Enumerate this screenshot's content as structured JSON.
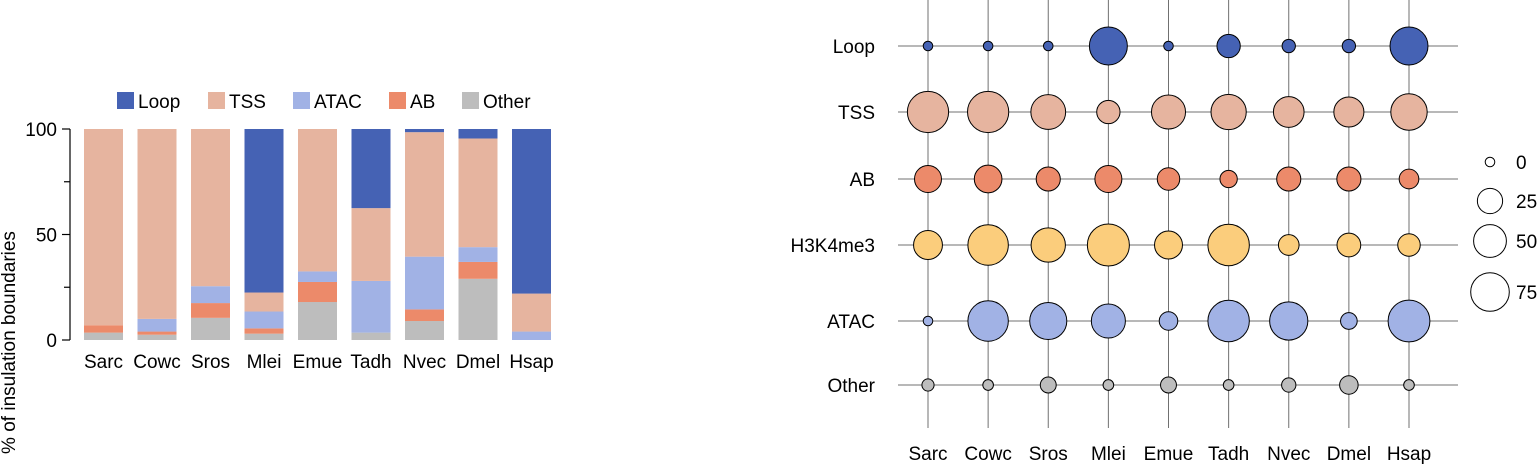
{
  "colors": {
    "Loop": "#4562b4",
    "TSS": "#e6b49f",
    "ATAC": "#a1b2e5",
    "AB": "#ec8a6a",
    "Other": "#bdbdbd",
    "H3K4me3": "#fbcd7c"
  },
  "chart_data": [
    {
      "type": "bar",
      "stacked": true,
      "categories": [
        "Sarc",
        "Cowc",
        "Sros",
        "Mlei",
        "Emue",
        "Tadh",
        "Nvec",
        "Dmel",
        "Hsap"
      ],
      "series": [
        {
          "name": "Other",
          "values": [
            3.5,
            2.5,
            10.5,
            3,
            18,
            3.5,
            9,
            29,
            0
          ]
        },
        {
          "name": "AB",
          "values": [
            3.5,
            1.5,
            7,
            2.5,
            9.5,
            0,
            5.5,
            8,
            0
          ]
        },
        {
          "name": "ATAC",
          "values": [
            0,
            6,
            8,
            8,
            5,
            24.5,
            25,
            7,
            4
          ]
        },
        {
          "name": "TSS",
          "values": [
            93,
            90,
            74.5,
            9,
            67.5,
            34.5,
            59,
            51.5,
            18
          ]
        },
        {
          "name": "Loop",
          "values": [
            0,
            0,
            0,
            77.5,
            0,
            37.5,
            1.5,
            4.5,
            78
          ]
        }
      ],
      "legend_order": [
        "Loop",
        "TSS",
        "ATAC",
        "AB",
        "Other"
      ],
      "legend_placement": "top",
      "ylabel": "% of insulation boundaries",
      "ylim": [
        0,
        100
      ],
      "yticks": [
        0,
        50,
        100
      ],
      "grid": false
    },
    {
      "type": "scatter",
      "subtype": "dot-matrix",
      "x_categories": [
        "Sarc",
        "Cowc",
        "Sros",
        "Mlei",
        "Emue",
        "Tadh",
        "Nvec",
        "Dmel",
        "Hsap"
      ],
      "y_categories": [
        "Loop",
        "TSS",
        "AB",
        "H3K4me3",
        "ATAC",
        "Other"
      ],
      "values": {
        "Loop": [
          0.5,
          0.5,
          0.5,
          72,
          0.5,
          20,
          3,
          3,
          72
        ],
        "TSS": [
          88,
          88,
          58,
          20,
          55,
          60,
          42,
          40,
          65
        ],
        "AB": [
          30,
          32,
          22,
          30,
          18,
          8,
          22,
          22,
          12
        ],
        "H3K4me3": [
          36,
          84,
          56,
          92,
          33,
          89,
          14,
          21,
          18
        ],
        "ATAC": [
          0.5,
          84,
          68,
          55,
          10,
          89,
          73,
          7,
          91
        ],
        "Other": [
          2,
          1,
          6,
          1,
          6,
          1,
          4,
          10,
          1
        ]
      },
      "size_legend": [
        {
          "label": "0",
          "value": 0.5
        },
        {
          "label": "25",
          "value": 25
        },
        {
          "label": "50",
          "value": 50
        },
        {
          "label": "75",
          "value": 75
        }
      ],
      "grid": true
    }
  ]
}
